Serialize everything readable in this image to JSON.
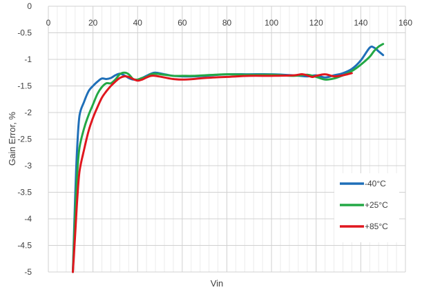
{
  "chart_data": {
    "type": "line",
    "title": "",
    "xlabel": "Vin",
    "ylabel": "Gain Error, %",
    "xlim": [
      0,
      160
    ],
    "ylim": [
      -5,
      0
    ],
    "x_ticks": [
      0,
      20,
      40,
      60,
      80,
      100,
      120,
      140,
      160
    ],
    "y_ticks": [
      0,
      -0.5,
      -1,
      -1.5,
      -2,
      -2.5,
      -3,
      -3.5,
      -4,
      -4.5,
      -5
    ],
    "y_tick_labels": [
      "0",
      "-0.5",
      "-1",
      "-1.5",
      "-2",
      "-2.5",
      "-3",
      "-3.5",
      "-4",
      "-4.5",
      "-5"
    ],
    "x_tick_labels": [
      "0",
      "20",
      "40",
      "60",
      "80",
      "100",
      "120",
      "140",
      "160"
    ],
    "grid": {
      "major": true,
      "minor_x": true
    },
    "legend_position": "bottom-right",
    "series": [
      {
        "name": "-40°C",
        "color": "#1f6fb8",
        "x": [
          11,
          12,
          13,
          14,
          16,
          18,
          20,
          22,
          24,
          26,
          28,
          30,
          32,
          34,
          36,
          38,
          40,
          42,
          44,
          46,
          48,
          52,
          56,
          60,
          65,
          70,
          80,
          90,
          100,
          110,
          116,
          120,
          124,
          128,
          132,
          136,
          140,
          144,
          146,
          148,
          150
        ],
        "y": [
          -5.0,
          -3.6,
          -2.6,
          -2.05,
          -1.8,
          -1.6,
          -1.5,
          -1.42,
          -1.36,
          -1.37,
          -1.35,
          -1.3,
          -1.27,
          -1.3,
          -1.35,
          -1.38,
          -1.38,
          -1.35,
          -1.31,
          -1.27,
          -1.25,
          -1.28,
          -1.31,
          -1.32,
          -1.32,
          -1.31,
          -1.28,
          -1.28,
          -1.28,
          -1.3,
          -1.32,
          -1.3,
          -1.34,
          -1.3,
          -1.26,
          -1.18,
          -1.02,
          -0.78,
          -0.78,
          -0.85,
          -0.92
        ]
      },
      {
        "name": "+25°C",
        "color": "#23a845",
        "x": [
          11,
          12,
          13,
          14,
          16,
          18,
          20,
          22,
          24,
          26,
          28,
          30,
          32,
          34,
          36,
          38,
          40,
          42,
          44,
          46,
          48,
          52,
          56,
          60,
          65,
          70,
          80,
          90,
          100,
          110,
          116,
          120,
          124,
          128,
          132,
          136,
          140,
          144,
          146,
          148,
          150
        ],
        "y": [
          -5.0,
          -3.9,
          -3.1,
          -2.65,
          -2.3,
          -2.05,
          -1.85,
          -1.65,
          -1.52,
          -1.45,
          -1.45,
          -1.38,
          -1.28,
          -1.25,
          -1.28,
          -1.37,
          -1.38,
          -1.35,
          -1.33,
          -1.28,
          -1.27,
          -1.29,
          -1.31,
          -1.31,
          -1.31,
          -1.3,
          -1.28,
          -1.29,
          -1.29,
          -1.31,
          -1.29,
          -1.33,
          -1.38,
          -1.36,
          -1.3,
          -1.22,
          -1.1,
          -0.95,
          -0.84,
          -0.76,
          -0.71
        ]
      },
      {
        "name": "+85°C",
        "color": "#e0171e",
        "x": [
          11,
          12,
          13,
          14,
          16,
          18,
          20,
          22,
          24,
          26,
          28,
          30,
          32,
          34,
          36,
          38,
          40,
          42,
          44,
          46,
          48,
          52,
          56,
          60,
          65,
          70,
          80,
          90,
          100,
          110,
          114,
          118,
          120,
          124,
          128,
          132,
          134,
          136
        ],
        "y": [
          -5.0,
          -4.3,
          -3.6,
          -3.1,
          -2.7,
          -2.35,
          -2.1,
          -1.9,
          -1.72,
          -1.6,
          -1.5,
          -1.42,
          -1.35,
          -1.32,
          -1.33,
          -1.37,
          -1.4,
          -1.38,
          -1.34,
          -1.31,
          -1.31,
          -1.34,
          -1.37,
          -1.38,
          -1.37,
          -1.35,
          -1.33,
          -1.31,
          -1.31,
          -1.3,
          -1.28,
          -1.33,
          -1.31,
          -1.28,
          -1.32,
          -1.3,
          -1.28,
          -1.26
        ]
      }
    ]
  }
}
